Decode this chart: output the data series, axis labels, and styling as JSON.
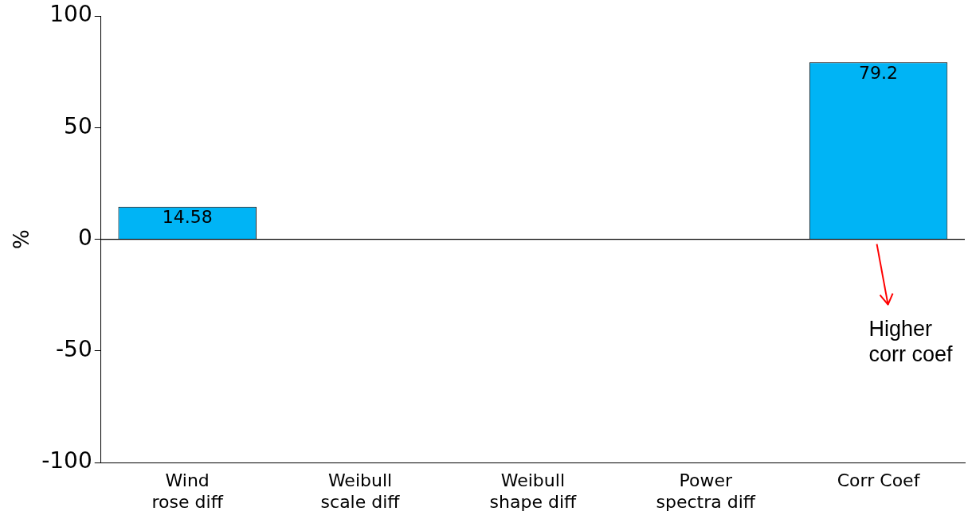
{
  "chart_data": {
    "type": "bar",
    "ylabel": "%",
    "categories": [
      "Wind\nrose diff",
      "Weibull\nscale diff",
      "Weibull\nshape diff",
      "Power\nspectra diff",
      "Corr Coef"
    ],
    "values": [
      14.58,
      null,
      null,
      null,
      79.2
    ],
    "color": "#00b4f5",
    "ylim": [
      -100,
      100
    ],
    "yticks": [
      -100,
      -50,
      0,
      50,
      100
    ],
    "grid": false,
    "data_labels": true,
    "ref_lines": [
      {
        "axis": "y",
        "value": 0,
        "color": "#000000"
      }
    ],
    "annotations": [
      "Higher\ncorr coef"
    ]
  }
}
